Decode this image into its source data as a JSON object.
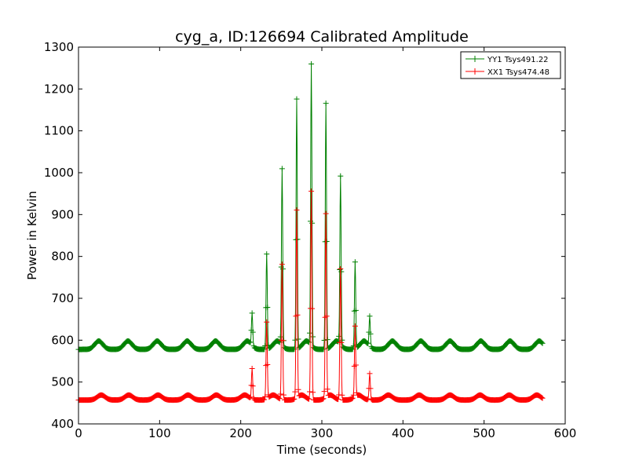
{
  "chart_data": {
    "type": "line",
    "title": "cyg_a, ID:126694 Calibrated Amplitude",
    "xlabel": "Time (seconds)",
    "ylabel": "Power in Kelvin",
    "xlim": [
      0,
      600
    ],
    "ylim": [
      400,
      1300
    ],
    "xticks": [
      0,
      100,
      200,
      300,
      400,
      500,
      600
    ],
    "yticks": [
      400,
      500,
      600,
      700,
      800,
      900,
      1000,
      1100,
      1200,
      1300
    ],
    "grid": false,
    "legend_position": "top-right",
    "marker": "+",
    "series": [
      {
        "name": "YY1 Tsys491.22",
        "color": "#008000",
        "baseline": 578,
        "ripple_amplitude": 20,
        "ripple_period": 35,
        "ripple_peaks": [
          25,
          61,
          97,
          134,
          169,
          208,
          245,
          281,
          318,
          352,
          387,
          422,
          458,
          496,
          532,
          568
        ],
        "t_start": 0,
        "t_end": 572,
        "spikes": [
          {
            "t": 214,
            "value": 655
          },
          {
            "t": 232,
            "value": 805
          },
          {
            "t": 251,
            "value": 1000
          },
          {
            "t": 269,
            "value": 1175
          },
          {
            "t": 287,
            "value": 1250
          },
          {
            "t": 305,
            "value": 1165
          },
          {
            "t": 323,
            "value": 980
          },
          {
            "t": 341,
            "value": 785
          },
          {
            "t": 359,
            "value": 650
          }
        ]
      },
      {
        "name": "XX1 Tsys474.48",
        "color": "#ff0000",
        "baseline": 457,
        "ripple_amplitude": 12,
        "ripple_period": 35,
        "ripple_peaks": [
          28,
          62,
          98,
          135,
          170,
          205,
          240,
          275,
          310,
          345,
          382,
          420,
          458,
          495,
          531,
          565
        ],
        "t_start": 0,
        "t_end": 572,
        "spikes": [
          {
            "t": 214,
            "value": 530
          },
          {
            "t": 232,
            "value": 640
          },
          {
            "t": 251,
            "value": 780
          },
          {
            "t": 269,
            "value": 905
          },
          {
            "t": 287,
            "value": 955
          },
          {
            "t": 305,
            "value": 895
          },
          {
            "t": 323,
            "value": 770
          },
          {
            "t": 341,
            "value": 625
          },
          {
            "t": 359,
            "value": 520
          }
        ]
      }
    ]
  }
}
